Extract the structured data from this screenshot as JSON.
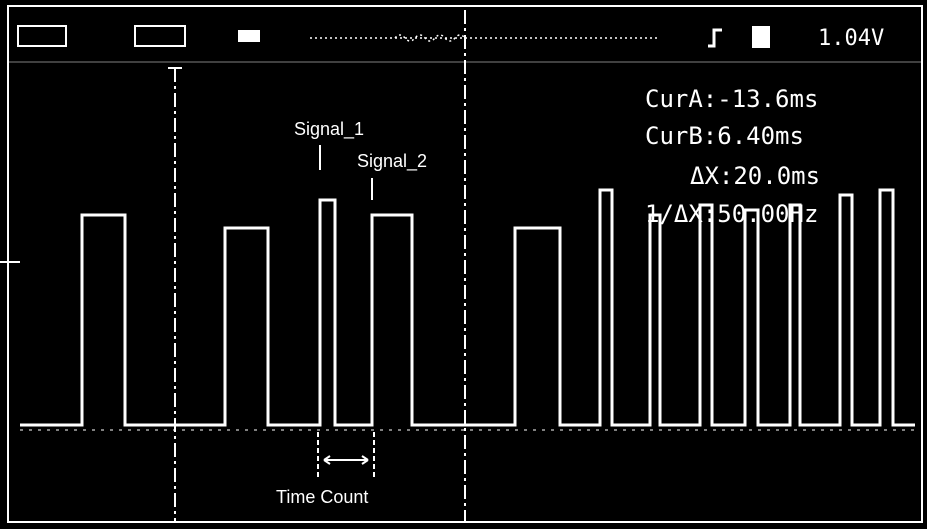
{
  "status": {
    "trigger_level": "1.04V"
  },
  "cursor_readout": {
    "cur_a": "CurA:-13.6ms",
    "cur_b": "CurB:6.40ms",
    "delta_x": "ΔX:20.0ms",
    "inv_delta_x": "1/ΔX:50.00Hz"
  },
  "labels": {
    "signal_1": "Signal_1",
    "signal_2": "Signal_2",
    "time_count": "Time Count"
  }
}
